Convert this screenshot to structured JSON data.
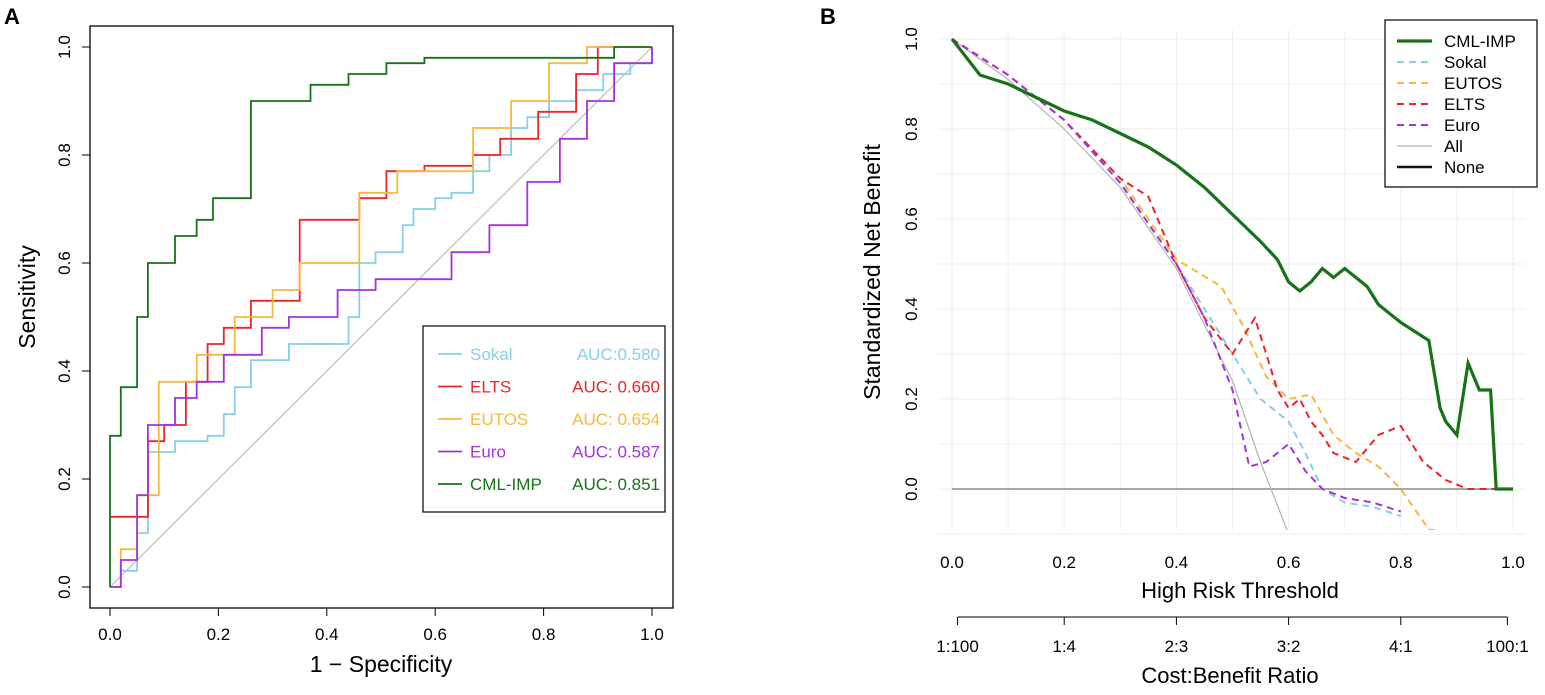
{
  "chart_data": [
    {
      "panel_label": "A",
      "type": "line",
      "xlabel": "1 − Specificity",
      "ylabel": "Sensitivity",
      "xlim": [
        0,
        1
      ],
      "ylim": [
        0,
        1
      ],
      "x_ticks": [
        "0.0",
        "0.2",
        "0.4",
        "0.6",
        "0.8",
        "1.0"
      ],
      "y_ticks": [
        "0.0",
        "0.2",
        "0.4",
        "0.6",
        "0.8",
        "1.0"
      ],
      "legend_position": "bottom-right",
      "diagonal_color": "#bdbdbd",
      "series": [
        {
          "name": "Sokal",
          "auc": "AUC:0.580",
          "color": "#87cfe8",
          "x": [
            0,
            0.02,
            0.02,
            0.05,
            0.05,
            0.07,
            0.07,
            0.12,
            0.12,
            0.18,
            0.18,
            0.21,
            0.21,
            0.23,
            0.23,
            0.26,
            0.26,
            0.33,
            0.33,
            0.44,
            0.44,
            0.46,
            0.46,
            0.49,
            0.49,
            0.54,
            0.54,
            0.56,
            0.56,
            0.6,
            0.6,
            0.63,
            0.63,
            0.67,
            0.67,
            0.7,
            0.7,
            0.74,
            0.74,
            0.77,
            0.77,
            0.81,
            0.81,
            0.86,
            0.86,
            0.91,
            0.91,
            0.96,
            0.96,
            1,
            1
          ],
          "y": [
            0,
            0,
            0.03,
            0.03,
            0.1,
            0.1,
            0.25,
            0.25,
            0.27,
            0.27,
            0.28,
            0.28,
            0.32,
            0.32,
            0.37,
            0.37,
            0.42,
            0.42,
            0.45,
            0.45,
            0.5,
            0.5,
            0.6,
            0.6,
            0.62,
            0.62,
            0.67,
            0.67,
            0.7,
            0.7,
            0.72,
            0.72,
            0.73,
            0.73,
            0.77,
            0.77,
            0.8,
            0.8,
            0.85,
            0.85,
            0.87,
            0.87,
            0.9,
            0.9,
            0.92,
            0.92,
            0.95,
            0.95,
            0.97,
            0.97,
            1
          ]
        },
        {
          "name": "ELTS",
          "auc": "AUC: 0.660",
          "color": "#e8262a",
          "x": [
            0,
            0.07,
            0.07,
            0.1,
            0.1,
            0.14,
            0.14,
            0.18,
            0.18,
            0.21,
            0.21,
            0.26,
            0.26,
            0.35,
            0.35,
            0.46,
            0.46,
            0.51,
            0.51,
            0.58,
            0.58,
            0.67,
            0.67,
            0.72,
            0.72,
            0.79,
            0.79,
            0.86,
            0.86,
            0.9,
            0.9,
            0.96,
            1
          ],
          "y": [
            0.13,
            0.13,
            0.27,
            0.27,
            0.3,
            0.3,
            0.38,
            0.38,
            0.45,
            0.45,
            0.48,
            0.48,
            0.53,
            0.53,
            0.68,
            0.68,
            0.72,
            0.72,
            0.77,
            0.77,
            0.78,
            0.78,
            0.8,
            0.8,
            0.83,
            0.83,
            0.88,
            0.88,
            0.95,
            0.95,
            1,
            1,
            1
          ]
        },
        {
          "name": "EUTOS",
          "auc": "AUC: 0.654",
          "color": "#f6b93b",
          "x": [
            0,
            0.02,
            0.02,
            0.05,
            0.05,
            0.09,
            0.09,
            0.16,
            0.16,
            0.23,
            0.23,
            0.3,
            0.3,
            0.35,
            0.35,
            0.46,
            0.46,
            0.53,
            0.53,
            0.67,
            0.67,
            0.74,
            0.74,
            0.81,
            0.81,
            0.88,
            0.88,
            0.93,
            0.93,
            1
          ],
          "y": [
            0,
            0,
            0.07,
            0.07,
            0.17,
            0.17,
            0.38,
            0.38,
            0.43,
            0.43,
            0.5,
            0.5,
            0.55,
            0.55,
            0.6,
            0.6,
            0.73,
            0.73,
            0.77,
            0.77,
            0.85,
            0.85,
            0.9,
            0.9,
            0.97,
            0.97,
            1,
            1,
            1,
            1
          ]
        },
        {
          "name": "Euro",
          "auc": "AUC: 0.587",
          "color": "#a632d8",
          "x": [
            0,
            0.02,
            0.02,
            0.05,
            0.05,
            0.07,
            0.07,
            0.12,
            0.12,
            0.16,
            0.16,
            0.21,
            0.21,
            0.28,
            0.28,
            0.33,
            0.33,
            0.42,
            0.42,
            0.49,
            0.49,
            0.63,
            0.63,
            0.7,
            0.7,
            0.77,
            0.77,
            0.83,
            0.83,
            0.88,
            0.88,
            0.93,
            0.93,
            1,
            1
          ],
          "y": [
            0,
            0,
            0.05,
            0.05,
            0.17,
            0.17,
            0.3,
            0.3,
            0.35,
            0.35,
            0.38,
            0.38,
            0.43,
            0.43,
            0.48,
            0.48,
            0.5,
            0.5,
            0.55,
            0.55,
            0.57,
            0.57,
            0.62,
            0.62,
            0.67,
            0.67,
            0.75,
            0.75,
            0.83,
            0.83,
            0.9,
            0.9,
            0.97,
            0.97,
            1
          ]
        },
        {
          "name": "CML-IMP",
          "auc": "AUC: 0.851",
          "color": "#177317",
          "x": [
            0,
            0,
            0.02,
            0.02,
            0.05,
            0.05,
            0.07,
            0.07,
            0.12,
            0.12,
            0.16,
            0.16,
            0.19,
            0.19,
            0.26,
            0.26,
            0.37,
            0.37,
            0.44,
            0.44,
            0.51,
            0.51,
            0.58,
            0.58,
            0.67,
            0.67,
            0.81,
            0.81,
            0.93,
            0.93,
            1
          ],
          "y": [
            0,
            0.28,
            0.28,
            0.37,
            0.37,
            0.5,
            0.5,
            0.6,
            0.6,
            0.65,
            0.65,
            0.68,
            0.68,
            0.72,
            0.72,
            0.9,
            0.9,
            0.93,
            0.93,
            0.95,
            0.95,
            0.97,
            0.97,
            0.98,
            0.98,
            0.98,
            0.98,
            0.98,
            0.98,
            1,
            1
          ]
        }
      ]
    },
    {
      "panel_label": "B",
      "type": "line",
      "xlabel": "High Risk Threshold",
      "ylabel": "Standardized Net Benefit",
      "xlim": [
        0,
        1
      ],
      "ylim": [
        -0.1,
        1
      ],
      "x_ticks": [
        "0.0",
        "0.2",
        "0.4",
        "0.6",
        "0.8",
        "1.0"
      ],
      "y_ticks": [
        "0.0",
        "0.2",
        "0.4",
        "0.6",
        "0.8",
        "1.0"
      ],
      "grid": true,
      "legend_position": "top-right",
      "secondary_axis": {
        "label": "Cost:Benefit Ratio",
        "ticks": [
          "1:100",
          "1:4",
          "2:3",
          "3:2",
          "4:1",
          "100:1"
        ]
      },
      "series": [
        {
          "name": "CML-IMP",
          "color": "#177317",
          "dash": "solid",
          "width": 3.2,
          "x": [
            0,
            0.05,
            0.1,
            0.15,
            0.2,
            0.25,
            0.3,
            0.35,
            0.4,
            0.45,
            0.5,
            0.55,
            0.58,
            0.6,
            0.62,
            0.64,
            0.66,
            0.68,
            0.7,
            0.72,
            0.74,
            0.76,
            0.8,
            0.85,
            0.87,
            0.88,
            0.9,
            0.92,
            0.94,
            0.96,
            0.97,
            0.98,
            1
          ],
          "y": [
            1,
            0.92,
            0.9,
            0.87,
            0.84,
            0.82,
            0.79,
            0.76,
            0.72,
            0.67,
            0.61,
            0.55,
            0.51,
            0.46,
            0.44,
            0.46,
            0.49,
            0.47,
            0.49,
            0.47,
            0.45,
            0.41,
            0.37,
            0.33,
            0.18,
            0.15,
            0.12,
            0.28,
            0.22,
            0.22,
            0,
            0,
            0
          ]
        },
        {
          "name": "Sokal",
          "color": "#87cfe8",
          "dash": "dashed",
          "width": 2,
          "x": [
            0,
            0.1,
            0.2,
            0.3,
            0.4,
            0.45,
            0.5,
            0.55,
            0.6,
            0.63,
            0.66,
            0.7,
            0.75,
            0.8
          ],
          "y": [
            1,
            0.92,
            0.82,
            0.68,
            0.5,
            0.4,
            0.3,
            0.2,
            0.15,
            0.08,
            0,
            -0.03,
            -0.04,
            -0.06
          ]
        },
        {
          "name": "EUTOS",
          "color": "#f6b93b",
          "dash": "dashed",
          "width": 2,
          "x": [
            0,
            0.1,
            0.2,
            0.3,
            0.4,
            0.44,
            0.48,
            0.52,
            0.56,
            0.6,
            0.64,
            0.68,
            0.72,
            0.76,
            0.8,
            0.85,
            0.9
          ],
          "y": [
            1,
            0.92,
            0.82,
            0.69,
            0.51,
            0.48,
            0.45,
            0.36,
            0.25,
            0.2,
            0.21,
            0.12,
            0.08,
            0.05,
            0,
            -0.09,
            -0.1
          ]
        },
        {
          "name": "ELTS",
          "color": "#e8262a",
          "dash": "dashed",
          "width": 2,
          "x": [
            0,
            0.1,
            0.2,
            0.3,
            0.35,
            0.4,
            0.45,
            0.5,
            0.54,
            0.56,
            0.58,
            0.6,
            0.62,
            0.64,
            0.66,
            0.68,
            0.72,
            0.76,
            0.8,
            0.84,
            0.88,
            0.92,
            1
          ],
          "y": [
            1,
            0.92,
            0.82,
            0.69,
            0.65,
            0.5,
            0.38,
            0.3,
            0.38,
            0.3,
            0.22,
            0.18,
            0.2,
            0.15,
            0.12,
            0.08,
            0.06,
            0.12,
            0.14,
            0.06,
            0.02,
            0,
            0
          ]
        },
        {
          "name": "Euro",
          "color": "#a632d8",
          "dash": "dashed",
          "width": 2,
          "x": [
            0,
            0.1,
            0.2,
            0.3,
            0.4,
            0.45,
            0.5,
            0.53,
            0.56,
            0.6,
            0.63,
            0.66,
            0.7,
            0.75,
            0.8
          ],
          "y": [
            1,
            0.92,
            0.82,
            0.68,
            0.5,
            0.38,
            0.22,
            0.05,
            0.06,
            0.1,
            0.04,
            0,
            -0.02,
            -0.03,
            -0.05
          ]
        },
        {
          "name": "All",
          "color": "#b3b3b3",
          "dash": "solid",
          "width": 1.2,
          "x": [
            0,
            0.1,
            0.2,
            0.3,
            0.4,
            0.5,
            0.55,
            0.6
          ],
          "y": [
            1,
            0.91,
            0.8,
            0.67,
            0.49,
            0.24,
            0.06,
            -0.1
          ]
        },
        {
          "name": "None",
          "color": "#111111",
          "dash": "solid",
          "width": 2.5,
          "legend_only": true,
          "x": [
            0,
            1
          ],
          "y": [
            0,
            0
          ]
        }
      ]
    }
  ]
}
